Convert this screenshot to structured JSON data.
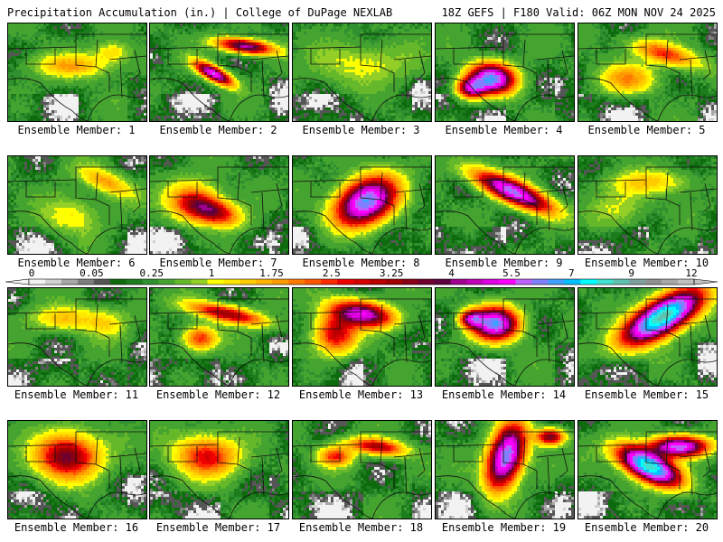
{
  "header": {
    "title_left": "Precipitation Accumulation (in.) | College of DuPage NEXLAB",
    "title_right": "18Z GEFS | F180 Valid: 06Z MON NOV 24 2025"
  },
  "chart_data": {
    "type": "heatmap",
    "title": "Precipitation Accumulation (in.)",
    "units": "in.",
    "model": "18Z GEFS",
    "forecast_hour": "F180",
    "valid": "06Z MON NOV 24 2025",
    "colorbar": {
      "tick_labels": [
        "0",
        "0.05",
        "0.25",
        "1",
        "1.75",
        "2.5",
        "3.25",
        "4",
        "5.5",
        "7",
        "9",
        "12"
      ],
      "tick_values": [
        0,
        0.05,
        0.25,
        1,
        1.75,
        2.5,
        3.25,
        4,
        5.5,
        7,
        9,
        12
      ],
      "colors": [
        "#f2f2f2",
        "#d2d2d2",
        "#a8a8a8",
        "#7e7e7e",
        "#565656",
        "#0d6b0d",
        "#1d7d1d",
        "#2f912f",
        "#45a32f",
        "#66b82b",
        "#93cf26",
        "#ffff00",
        "#ffe600",
        "#ffcc00",
        "#ffb300",
        "#ff9900",
        "#ff7a00",
        "#ff5500",
        "#ff2a00",
        "#ee0000",
        "#d30000",
        "#b80000",
        "#a00000",
        "#880016",
        "#700030",
        "#5c0040",
        "#a00090",
        "#c000b8",
        "#dd00e0",
        "#ff00ff",
        "#c060ff",
        "#8080ff",
        "#40a0ff",
        "#00c0ff",
        "#00ffff",
        "#40e0d0",
        "#60c0b0",
        "#80a0a0",
        "#909090",
        "#a8a8a8",
        "#c0c0c0"
      ]
    },
    "members": [
      {
        "member": 1,
        "label": "Ensemble Member: 1",
        "max_in": 1.4
      },
      {
        "member": 2,
        "label": "Ensemble Member: 2",
        "max_in": 4.5
      },
      {
        "member": 3,
        "label": "Ensemble Member: 3",
        "max_in": 0.9
      },
      {
        "member": 4,
        "label": "Ensemble Member: 4",
        "max_in": 5.2
      },
      {
        "member": 5,
        "label": "Ensemble Member: 5",
        "max_in": 2.4
      },
      {
        "member": 6,
        "label": "Ensemble Member: 6",
        "max_in": 1.5
      },
      {
        "member": 7,
        "label": "Ensemble Member: 7",
        "max_in": 3.0
      },
      {
        "member": 8,
        "label": "Ensemble Member: 8",
        "max_in": 5.3
      },
      {
        "member": 9,
        "label": "Ensemble Member: 9",
        "max_in": 4.8
      },
      {
        "member": 10,
        "label": "Ensemble Member: 10",
        "max_in": 1.2
      },
      {
        "member": 11,
        "label": "Ensemble Member: 11",
        "max_in": 1.3
      },
      {
        "member": 12,
        "label": "Ensemble Member: 12",
        "max_in": 3.0
      },
      {
        "member": 13,
        "label": "Ensemble Member: 13",
        "max_in": 4.2
      },
      {
        "member": 14,
        "label": "Ensemble Member: 14",
        "max_in": 5.2
      },
      {
        "member": 15,
        "label": "Ensemble Member: 15",
        "max_in": 7.2
      },
      {
        "member": 16,
        "label": "Ensemble Member: 16",
        "max_in": 3.2
      },
      {
        "member": 17,
        "label": "Ensemble Member: 17",
        "max_in": 2.6
      },
      {
        "member": 18,
        "label": "Ensemble Member: 18",
        "max_in": 3.0
      },
      {
        "member": 19,
        "label": "Ensemble Member: 19",
        "max_in": 5.3
      },
      {
        "member": 20,
        "label": "Ensemble Member: 20",
        "max_in": 6.8
      }
    ]
  }
}
